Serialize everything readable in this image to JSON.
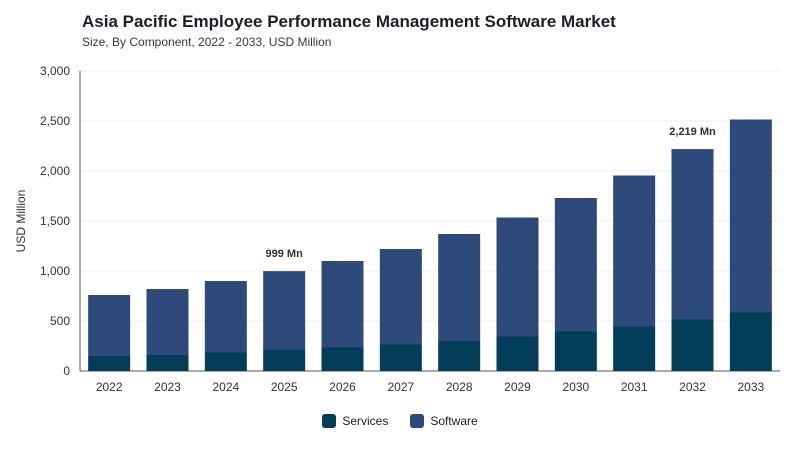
{
  "header": {
    "title": "Asia Pacific Employee Performance Management Software Market",
    "subtitle": "Size, By Component, 2022 - 2033, USD Million"
  },
  "colors": {
    "services": "#023e5a",
    "software": "#2e4a7b",
    "grid": "#eeeeee",
    "axis": "#555555"
  },
  "chart_data": {
    "type": "bar",
    "stacked": true,
    "title": "Asia Pacific Employee Performance Management Software Market",
    "subtitle": "Size, By Component, 2022 - 2033, USD Million",
    "xlabel": "",
    "ylabel": "USD Million",
    "ylim": [
      0,
      3000
    ],
    "yticks": [
      0,
      500,
      1000,
      1500,
      2000,
      2500,
      3000
    ],
    "ytick_labels": [
      "0",
      "500",
      "1,000",
      "1,500",
      "2,000",
      "2,500",
      "3,000"
    ],
    "categories": [
      "2022",
      "2023",
      "2024",
      "2025",
      "2026",
      "2027",
      "2028",
      "2029",
      "2030",
      "2031",
      "2032",
      "2033"
    ],
    "series": [
      {
        "name": "Services",
        "values": [
          150,
          168,
          185,
          210,
          235,
          265,
          300,
          345,
          395,
          445,
          515,
          585
        ]
      },
      {
        "name": "Software",
        "values": [
          610,
          652,
          715,
          789,
          865,
          955,
          1070,
          1190,
          1335,
          1510,
          1704,
          1930
        ]
      }
    ],
    "annotations": [
      {
        "category": "2025",
        "text": "999 Mn"
      },
      {
        "category": "2032",
        "text": "2,219 Mn"
      }
    ],
    "legend_position": "bottom-center",
    "grid": true
  }
}
